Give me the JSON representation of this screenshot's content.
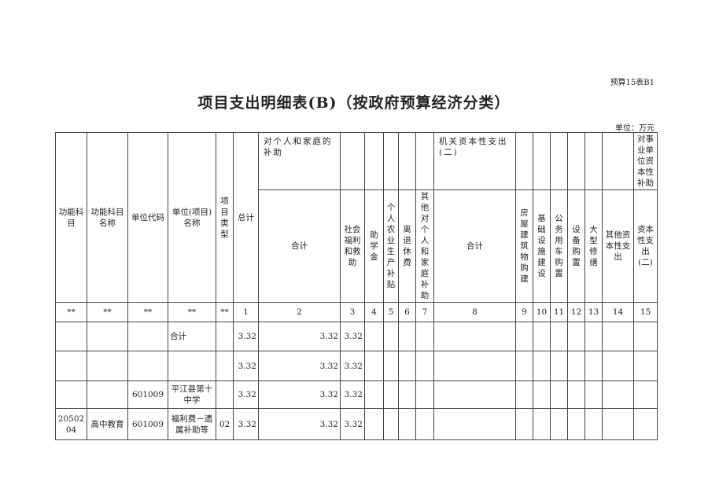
{
  "doc": {
    "code": "预算15表B1",
    "title": "项目支出明细表(B)（按政府预算经济分类）",
    "unit": "单位：万元"
  },
  "header": {
    "c1": "功能科目",
    "c2": "功能科目名称",
    "c3": "单位代码",
    "c4": "单位(项目)名称",
    "c5": "项目类型",
    "c6": "总计",
    "g1": "对个人和家庭的补助",
    "g1_total": "合计",
    "g1_cols": [
      "社会福利和救助",
      "助学金",
      "个人农业生产补贴",
      "离退休费",
      "其他对个人和家庭补助"
    ],
    "g2": "机关资本性支出(二)",
    "g2_total": "合计",
    "g2_cols": [
      "房屋建筑物购建",
      "基础设施建设",
      "公务用车购置",
      "设备购置",
      "大型修缮",
      "其他资本性支出"
    ],
    "g3": "对事业单位资本性补助",
    "g3_col": "资本性支出(二)"
  },
  "index_row": [
    "**",
    "**",
    "**",
    "**",
    "**",
    "1",
    "2",
    "3",
    "4",
    "5",
    "6",
    "7",
    "8",
    "9",
    "10",
    "11",
    "12",
    "13",
    "14",
    "15"
  ],
  "rows": [
    [
      "",
      "",
      "",
      "合计",
      "",
      "3.32",
      "3.32",
      "3.32",
      "",
      "",
      "",
      "",
      "",
      "",
      "",
      "",
      "",
      "",
      "",
      ""
    ],
    [
      "",
      "",
      "",
      "",
      "",
      "3.32",
      "3.32",
      "3.32",
      "",
      "",
      "",
      "",
      "",
      "",
      "",
      "",
      "",
      "",
      "",
      ""
    ],
    [
      "",
      "",
      "601009",
      "平江县第十中学",
      "",
      "3.32",
      "3.32",
      "3.32",
      "",
      "",
      "",
      "",
      "",
      "",
      "",
      "",
      "",
      "",
      "",
      ""
    ],
    [
      "20502 04",
      "高中教育",
      "601009",
      "福利费－遗属补助等",
      "02",
      "3.32",
      "3.32",
      "3.32",
      "",
      "",
      "",
      "",
      "",
      "",
      "",
      "",
      "",
      "",
      "",
      ""
    ]
  ]
}
